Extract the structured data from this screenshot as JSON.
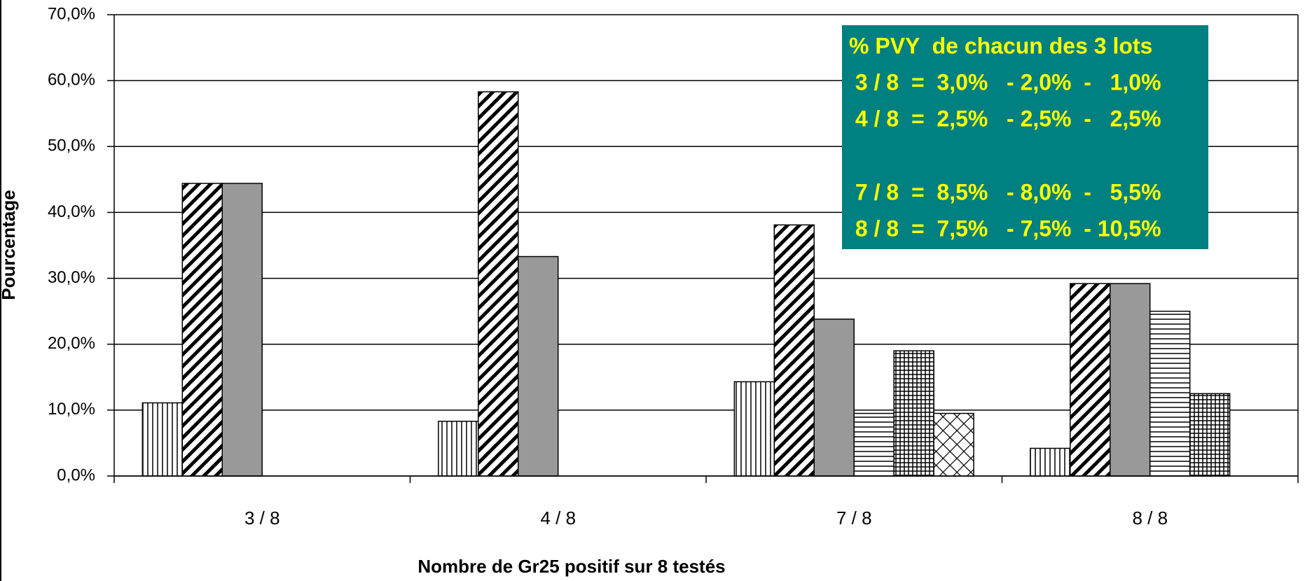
{
  "chart_data": {
    "type": "bar",
    "categories": [
      "3 / 8",
      "4 / 8",
      "7 / 8",
      "8 / 8"
    ],
    "series": [
      {
        "color": "#000000",
        "pattern": "vertical",
        "values": [
          11.1,
          8.3,
          14.3,
          4.2
        ]
      },
      {
        "color": "#000000",
        "pattern": "diagonal",
        "values": [
          44.4,
          58.3,
          38.1,
          29.2
        ]
      },
      {
        "color": "#999999",
        "pattern": "solid",
        "values": [
          44.4,
          33.3,
          23.8,
          29.2
        ]
      },
      {
        "color": "#000000",
        "pattern": "horizontal",
        "values": [
          null,
          null,
          9.5,
          25.0
        ]
      },
      {
        "color": "#000000",
        "pattern": "grid",
        "values": [
          null,
          null,
          19.0,
          12.5
        ]
      },
      {
        "color": "#000000",
        "pattern": "crosshatch",
        "values": [
          null,
          null,
          9.5,
          null
        ]
      }
    ],
    "ylim": [
      0,
      70
    ],
    "yticks": [
      {
        "value": 0,
        "label": "0,0%"
      },
      {
        "value": 10,
        "label": "10,0%"
      },
      {
        "value": 20,
        "label": "20,0%"
      },
      {
        "value": 30,
        "label": "30,0%"
      },
      {
        "value": 40,
        "label": "40,0%"
      },
      {
        "value": 50,
        "label": "50,0%"
      },
      {
        "value": 60,
        "label": "60,0%"
      },
      {
        "value": 70,
        "label": "70,0%"
      }
    ],
    "grid": true,
    "y_label": "Pourcentage",
    "x_label": "Nombre de Gr25 positif sur 8 testés",
    "annotation": {
      "background": "#008080",
      "lines": [
        "% PVY  de chacun des 3 lots",
        " 3 / 8  =  3,0%   - 2,0%  -   1,0%",
        " 4 / 8  =  2,5%   - 2,5%  -   2,5%",
        " 7 / 8  =  8,5%   - 8,0%  -   5,5%",
        " 8 / 8  =  7,5%   - 7,5%  - 10,5%"
      ]
    }
  }
}
